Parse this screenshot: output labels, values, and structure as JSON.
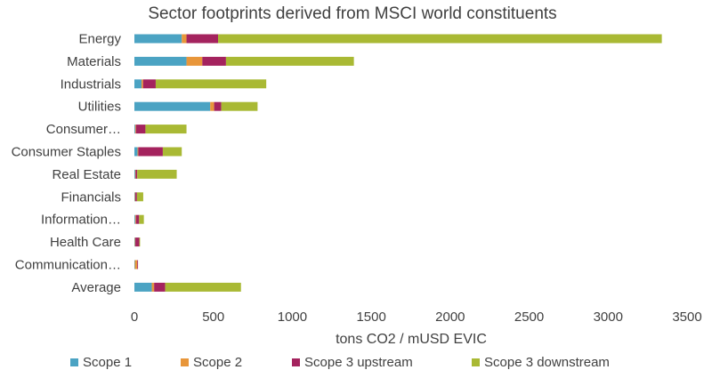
{
  "chart_data": {
    "type": "bar",
    "orientation": "horizontal",
    "stacked": true,
    "title": "Sector footprints derived from MSCI world constituents",
    "xlabel": "tons CO2 / mUSD EVIC",
    "ylabel": "",
    "xlim": [
      0,
      3500
    ],
    "xticks": [
      "0",
      "500",
      "1000",
      "1500",
      "2000",
      "2500",
      "3000",
      "3500"
    ],
    "xtick_values": [
      0,
      500,
      1000,
      1500,
      2000,
      2500,
      3000,
      3500
    ],
    "grid": false,
    "legend_position": "bottom",
    "categories": [
      "Energy",
      "Materials",
      "Industrials",
      "Utilities",
      "Consumer…",
      "Consumer Staples",
      "Real Estate",
      "Financials",
      "Information…",
      "Health Care",
      "Communication…",
      "Average"
    ],
    "series": [
      {
        "name": "Scope 1",
        "color": "#4BA3C3",
        "values": [
          300,
          330,
          45,
          480,
          5,
          20,
          5,
          3,
          5,
          3,
          3,
          110
        ]
      },
      {
        "name": "Scope 2",
        "color": "#E8963A",
        "values": [
          30,
          100,
          10,
          25,
          5,
          5,
          3,
          3,
          5,
          3,
          15,
          15
        ]
      },
      {
        "name": "Scope 3 upstream",
        "color": "#A4235E",
        "values": [
          200,
          150,
          80,
          45,
          60,
          155,
          10,
          10,
          20,
          25,
          5,
          70
        ]
      },
      {
        "name": "Scope 3 downstream",
        "color": "#A9B934",
        "values": [
          2810,
          810,
          700,
          230,
          260,
          120,
          250,
          40,
          30,
          5,
          0,
          480
        ]
      }
    ]
  }
}
